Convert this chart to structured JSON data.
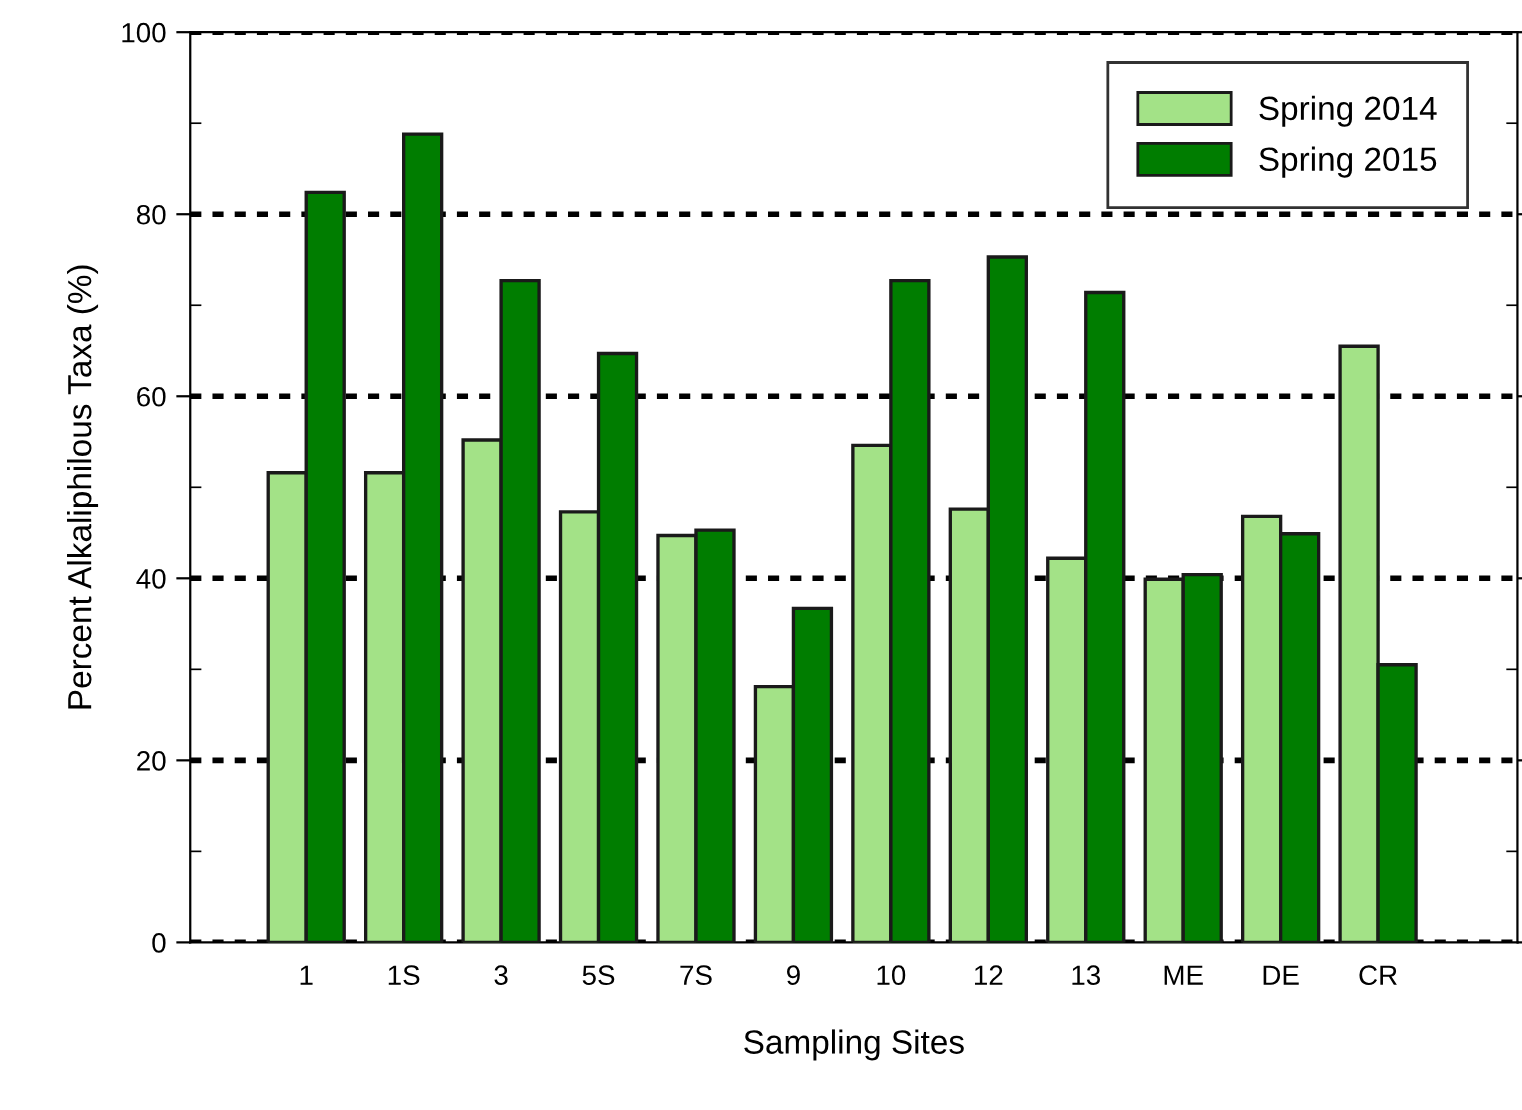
{
  "chart_data": {
    "type": "bar",
    "xlabel": "Sampling Sites",
    "ylabel": "Percent Alkaliphilous Taxa (%)",
    "categories": [
      "1",
      "1S",
      "3",
      "5S",
      "7S",
      "9",
      "10",
      "12",
      "13",
      "ME",
      "DE",
      "CR"
    ],
    "series": [
      {
        "name": "Spring 2014",
        "color": "#a3e287",
        "values": [
          51.6,
          51.6,
          55.2,
          47.3,
          44.7,
          28.1,
          54.6,
          47.6,
          42.2,
          39.9,
          46.8,
          65.5
        ]
      },
      {
        "name": "Spring 2015",
        "color": "#007d00",
        "values": [
          82.4,
          88.8,
          72.7,
          64.7,
          45.3,
          36.7,
          72.7,
          75.3,
          71.4,
          40.4,
          44.9,
          30.5
        ]
      }
    ],
    "ylim": [
      0,
      100
    ],
    "yticks": [
      0,
      {
        "value": 10,
        "label": null
      },
      20,
      {
        "value": 30,
        "label": null
      },
      40,
      {
        "value": 50,
        "label": null
      },
      60,
      {
        "value": 70,
        "label": null
      },
      80,
      {
        "value": 90,
        "label": null
      },
      100
    ],
    "grid": "y",
    "legend": "top right"
  }
}
